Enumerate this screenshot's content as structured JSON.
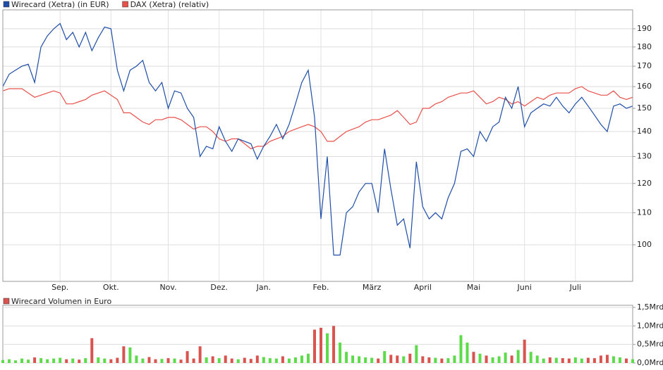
{
  "chart_data": [
    {
      "type": "line",
      "log_scale": true,
      "grid": true,
      "categories": [
        null,
        null,
        null,
        null,
        null,
        null,
        null,
        null,
        null,
        "Sep.",
        null,
        null,
        null,
        null,
        null,
        null,
        null,
        "Okt.",
        null,
        null,
        null,
        null,
        null,
        null,
        null,
        null,
        "Nov.",
        null,
        null,
        null,
        null,
        null,
        null,
        null,
        "Dez.",
        null,
        null,
        null,
        null,
        null,
        null,
        "Jan.",
        null,
        null,
        null,
        null,
        null,
        null,
        null,
        null,
        "Feb.",
        null,
        null,
        null,
        null,
        null,
        null,
        null,
        "März",
        null,
        null,
        null,
        null,
        null,
        null,
        null,
        "April",
        null,
        null,
        null,
        null,
        null,
        null,
        null,
        "Mai",
        null,
        null,
        null,
        null,
        null,
        null,
        null,
        "Juni",
        null,
        null,
        null,
        null,
        null,
        null,
        null,
        "Juli",
        null,
        null,
        null,
        null,
        null,
        null,
        null,
        null,
        null
      ],
      "series": [
        {
          "name": "Wirecard (Xetra) (in EUR)",
          "color": "#1f4ea8",
          "values": [
            160,
            166,
            168,
            170,
            171,
            162,
            180,
            186,
            190,
            193,
            184,
            188,
            180,
            188,
            178,
            185,
            191,
            190,
            168,
            158,
            168,
            170,
            173,
            162,
            158,
            162,
            150,
            158,
            157,
            150,
            146,
            130,
            134,
            133,
            142,
            136,
            132,
            137,
            136,
            135,
            129,
            134,
            138,
            143,
            137,
            143,
            152,
            162,
            168,
            146,
            108,
            130,
            97,
            97,
            110,
            112,
            117,
            120,
            120,
            110,
            133,
            118,
            106,
            108,
            99,
            128,
            112,
            108,
            110,
            108,
            115,
            120,
            132,
            133,
            130,
            140,
            136,
            142,
            144,
            155,
            150,
            160,
            142,
            148,
            150,
            152,
            151,
            155,
            151,
            148,
            152,
            155,
            151,
            147,
            143,
            140,
            151,
            152,
            150,
            151
          ]
        },
        {
          "name": "DAX (Xetra) (relativ)",
          "color": "#e8504a",
          "values": [
            158,
            159,
            159,
            159,
            157,
            155,
            156,
            157,
            158,
            157,
            152,
            152,
            153,
            154,
            156,
            157,
            158,
            156,
            154,
            148,
            148,
            146,
            144,
            143,
            145,
            145,
            146,
            146,
            145,
            143,
            141,
            142,
            142,
            140,
            137,
            136,
            137,
            137,
            135,
            133,
            134,
            134,
            136,
            137,
            138,
            140,
            141,
            142,
            143,
            142,
            140,
            136,
            136,
            138,
            140,
            141,
            142,
            144,
            145,
            145,
            146,
            147,
            149,
            146,
            143,
            144,
            150,
            150,
            152,
            153,
            155,
            156,
            157,
            157,
            158,
            155,
            152,
            153,
            155,
            154,
            152,
            153,
            151,
            153,
            155,
            154,
            156,
            157,
            157,
            157,
            159,
            160,
            158,
            157,
            156,
            156,
            158,
            155,
            154,
            155
          ]
        }
      ],
      "ylim": [
        89.7,
        201
      ],
      "yticks": [
        100,
        110,
        120,
        130,
        140,
        150,
        160,
        170,
        180,
        190
      ]
    },
    {
      "type": "bar",
      "title": "Wirecard Volumen in Euro",
      "grid": true,
      "color": "#d9534f",
      "up_color": "#5ddb4a",
      "down_color": "#d9534f",
      "values": [
        0.08,
        0.1,
        0.07,
        0.12,
        0.09,
        0.15,
        0.13,
        0.1,
        0.12,
        0.14,
        0.1,
        0.12,
        0.09,
        0.13,
        0.67,
        0.15,
        0.12,
        0.1,
        0.14,
        0.45,
        0.42,
        0.2,
        0.12,
        0.16,
        0.1,
        0.11,
        0.13,
        0.12,
        0.09,
        0.32,
        0.12,
        0.45,
        0.15,
        0.18,
        0.13,
        0.2,
        0.12,
        0.1,
        0.14,
        0.11,
        0.2,
        0.16,
        0.13,
        0.12,
        0.18,
        0.12,
        0.15,
        0.2,
        0.25,
        0.9,
        0.95,
        0.8,
        1.0,
        0.55,
        0.3,
        0.2,
        0.18,
        0.15,
        0.14,
        0.12,
        0.32,
        0.22,
        0.2,
        0.18,
        0.25,
        0.48,
        0.18,
        0.15,
        0.14,
        0.12,
        0.13,
        0.2,
        0.75,
        0.55,
        0.3,
        0.25,
        0.2,
        0.15,
        0.18,
        0.28,
        0.2,
        0.35,
        0.63,
        0.3,
        0.2,
        0.12,
        0.15,
        0.14,
        0.13,
        0.12,
        0.15,
        0.12,
        0.14,
        0.13,
        0.2,
        0.22,
        0.18,
        0.15,
        0.12,
        0.1
      ],
      "ylim": [
        0,
        1.5
      ],
      "yticks": [
        {
          "value": 0,
          "label": "0,0Mrd"
        },
        {
          "value": 0.5,
          "label": "0,5Mrd"
        },
        {
          "value": 1.0,
          "label": "1,0Mrd"
        },
        {
          "value": 1.5,
          "label": "1,5Mrd"
        }
      ]
    }
  ]
}
